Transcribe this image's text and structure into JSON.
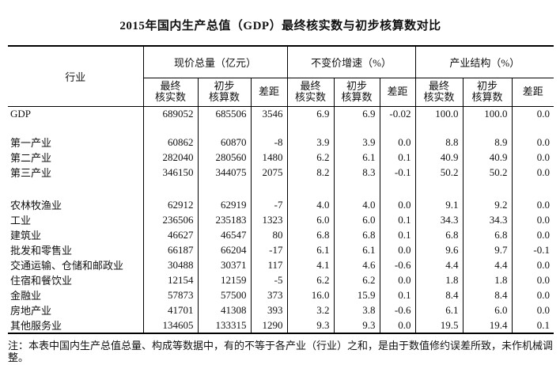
{
  "title": "2015年国内生产总值（GDP）最终核实数与初步核算数对比",
  "note": "注：本表中国内生产总值总量、构成等数据中，有的不等于各产业（行业）之和，是由于数值修约误差所致，未作机械调整。",
  "table": {
    "row_header": "行业",
    "groups": [
      {
        "label": "现价总量（亿元）"
      },
      {
        "label": "不变价增速（%）"
      },
      {
        "label": "产业结构（%）"
      }
    ],
    "sub_headers": [
      "最终\n核实数",
      "初步\n核算数",
      "差距"
    ],
    "rows": [
      {
        "label": "GDP",
        "values": [
          "689052",
          "685506",
          "3546",
          "6.9",
          "6.9",
          "-0.02",
          "100.0",
          "100.0",
          "0.0"
        ],
        "group_break_after": true
      },
      {
        "label": "第一产业",
        "values": [
          "60862",
          "60870",
          "-8",
          "3.9",
          "3.9",
          "0.0",
          "8.8",
          "8.9",
          "0.0"
        ]
      },
      {
        "label": "第二产业",
        "values": [
          "282040",
          "280560",
          "1480",
          "6.2",
          "6.1",
          "0.1",
          "40.9",
          "40.9",
          "0.0"
        ]
      },
      {
        "label": "第三产业",
        "values": [
          "346150",
          "344075",
          "2075",
          "8.2",
          "8.3",
          "-0.1",
          "50.2",
          "50.2",
          "0.0"
        ],
        "group_break_after": true
      },
      {
        "label": "农林牧渔业",
        "values": [
          "62912",
          "62919",
          "-7",
          "4.0",
          "4.0",
          "0.0",
          "9.1",
          "9.2",
          "0.0"
        ]
      },
      {
        "label": "工业",
        "values": [
          "236506",
          "235183",
          "1323",
          "6.0",
          "6.0",
          "0.1",
          "34.3",
          "34.3",
          "0.0"
        ]
      },
      {
        "label": "建筑业",
        "values": [
          "46627",
          "46547",
          "80",
          "6.8",
          "6.8",
          "0.1",
          "6.8",
          "6.8",
          "0.0"
        ]
      },
      {
        "label": "批发和零售业",
        "values": [
          "66187",
          "66204",
          "-17",
          "6.1",
          "6.1",
          "0.0",
          "9.6",
          "9.7",
          "-0.1"
        ]
      },
      {
        "label": "交通运输、仓储和邮政业",
        "values": [
          "30488",
          "30371",
          "117",
          "4.1",
          "4.6",
          "-0.6",
          "4.4",
          "4.4",
          "0.0"
        ]
      },
      {
        "label": "住宿和餐饮业",
        "values": [
          "12154",
          "12159",
          "-5",
          "6.2",
          "6.2",
          "0.0",
          "1.8",
          "1.8",
          "0.0"
        ]
      },
      {
        "label": "金融业",
        "values": [
          "57873",
          "57500",
          "373",
          "16.0",
          "15.9",
          "0.1",
          "8.4",
          "8.4",
          "0.0"
        ]
      },
      {
        "label": "房地产业",
        "values": [
          "41701",
          "41308",
          "393",
          "3.2",
          "3.8",
          "-0.6",
          "6.1",
          "6.0",
          "0.0"
        ]
      },
      {
        "label": "其他服务业",
        "values": [
          "134605",
          "133315",
          "1290",
          "9.3",
          "9.3",
          "0.0",
          "19.5",
          "19.4",
          "0.1"
        ]
      }
    ]
  }
}
